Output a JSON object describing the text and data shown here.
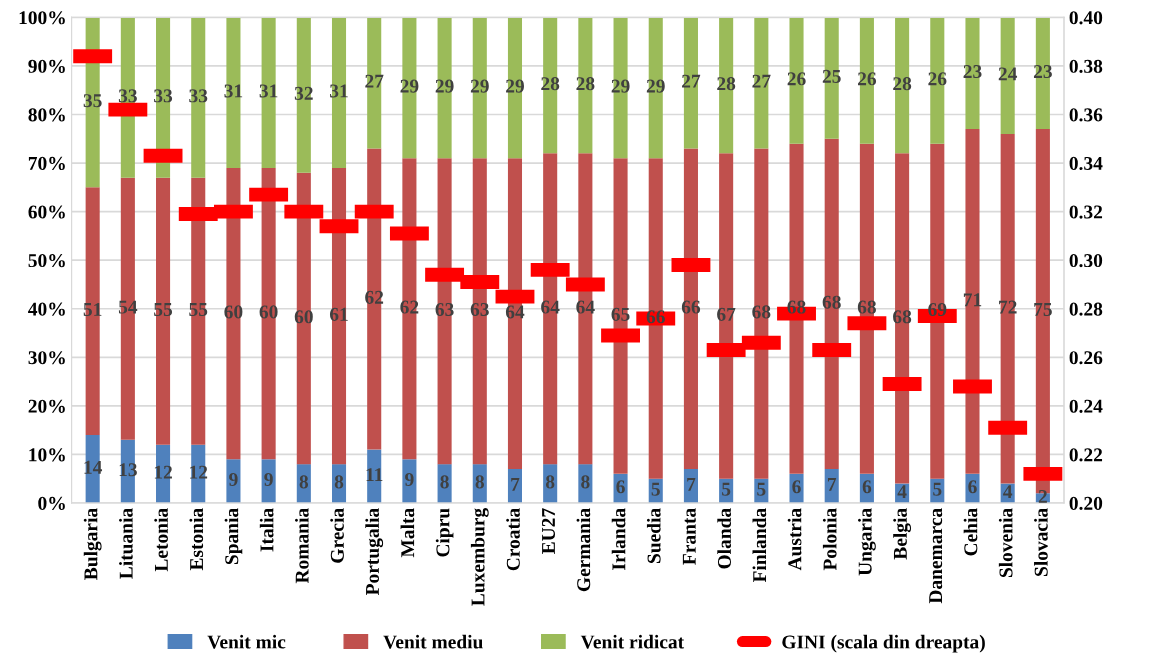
{
  "chart_data": {
    "type": "bar",
    "stacked": true,
    "data_labels": true,
    "grid": "y",
    "legend": "bottom",
    "categories": [
      "Bulgaria",
      "Lituania",
      "Letonia",
      "Estonia",
      "Spania",
      "Italia",
      "Romania",
      "Grecia",
      "Portugalia",
      "Malta",
      "Cipru",
      "Luxemburg",
      "Croatia",
      "EU27",
      "Germania",
      "Irlanda",
      "Suedia",
      "Franta",
      "Olanda",
      "Finlanda",
      "Austria",
      "Polonia",
      "Ungaria",
      "Belgia",
      "Danemarca",
      "Cehia",
      "Slovenia",
      "Slovacia"
    ],
    "series": [
      {
        "name": "Venit mic",
        "color": "#4f81bd",
        "values": [
          14,
          13,
          12,
          12,
          9,
          9,
          8,
          8,
          11,
          9,
          8,
          8,
          7,
          8,
          8,
          6,
          5,
          7,
          5,
          5,
          6,
          7,
          6,
          4,
          5,
          6,
          4,
          2
        ]
      },
      {
        "name": "Venit mediu",
        "color": "#c0504d",
        "values": [
          51,
          54,
          55,
          55,
          60,
          60,
          60,
          61,
          62,
          62,
          63,
          63,
          64,
          64,
          64,
          65,
          66,
          66,
          67,
          68,
          68,
          68,
          68,
          68,
          69,
          71,
          72,
          75
        ]
      },
      {
        "name": "Venit ridicat",
        "color": "#9bbb59",
        "values": [
          35,
          33,
          33,
          33,
          31,
          31,
          32,
          31,
          27,
          29,
          29,
          29,
          29,
          28,
          28,
          29,
          29,
          27,
          28,
          27,
          26,
          25,
          26,
          28,
          26,
          23,
          24,
          23
        ]
      },
      {
        "name": "GINI (scala din dreapta)",
        "type": "scatter",
        "marker": "square",
        "axis": "y2",
        "color": "#ff0000",
        "data_labels": false,
        "values": [
          0.384,
          0.362,
          0.343,
          0.319,
          0.32,
          0.327,
          0.32,
          0.314,
          0.32,
          0.311,
          0.294,
          0.291,
          0.285,
          0.296,
          0.29,
          0.269,
          0.276,
          0.298,
          0.263,
          0.266,
          0.278,
          0.263,
          0.274,
          0.249,
          0.277,
          0.248,
          0.231,
          0.212
        ]
      }
    ],
    "ylim": [
      0,
      100
    ],
    "yticks": [
      {
        "value": 0,
        "label": "0%"
      },
      {
        "value": 10,
        "label": "10%"
      },
      {
        "value": 20,
        "label": "20%"
      },
      {
        "value": 30,
        "label": "30%"
      },
      {
        "value": 40,
        "label": "40%"
      },
      {
        "value": 50,
        "label": "50%"
      },
      {
        "value": 60,
        "label": "60%"
      },
      {
        "value": 70,
        "label": "70%"
      },
      {
        "value": 80,
        "label": "80%"
      },
      {
        "value": 90,
        "label": "90%"
      },
      {
        "value": 100,
        "label": "100%"
      }
    ],
    "y2lim": [
      0.2,
      0.4
    ],
    "y2ticks": [
      {
        "value": 0.2,
        "label": "0.20"
      },
      {
        "value": 0.22,
        "label": "0.22"
      },
      {
        "value": 0.24,
        "label": "0.24"
      },
      {
        "value": 0.26,
        "label": "0.26"
      },
      {
        "value": 0.28,
        "label": "0.28"
      },
      {
        "value": 0.3,
        "label": "0.30"
      },
      {
        "value": 0.32,
        "label": "0.32"
      },
      {
        "value": 0.34,
        "label": "0.34"
      },
      {
        "value": 0.36,
        "label": "0.36"
      },
      {
        "value": 0.38,
        "label": "0.38"
      },
      {
        "value": 0.4,
        "label": "0.40"
      }
    ]
  }
}
